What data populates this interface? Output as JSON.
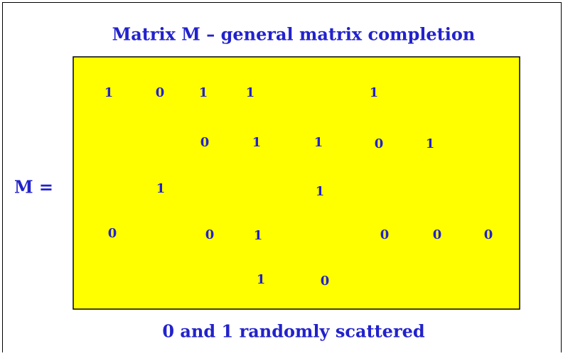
{
  "title": "Matrix M – general matrix completion",
  "label": "M =",
  "entries": [
    "1",
    "0",
    "1",
    "1",
    "1",
    "0",
    "1",
    "1",
    "0",
    "1",
    "1",
    "1",
    "0",
    "0",
    "1",
    "0",
    "0",
    "0",
    "1",
    "0"
  ],
  "caption": "0 and 1 randomly scattered"
}
